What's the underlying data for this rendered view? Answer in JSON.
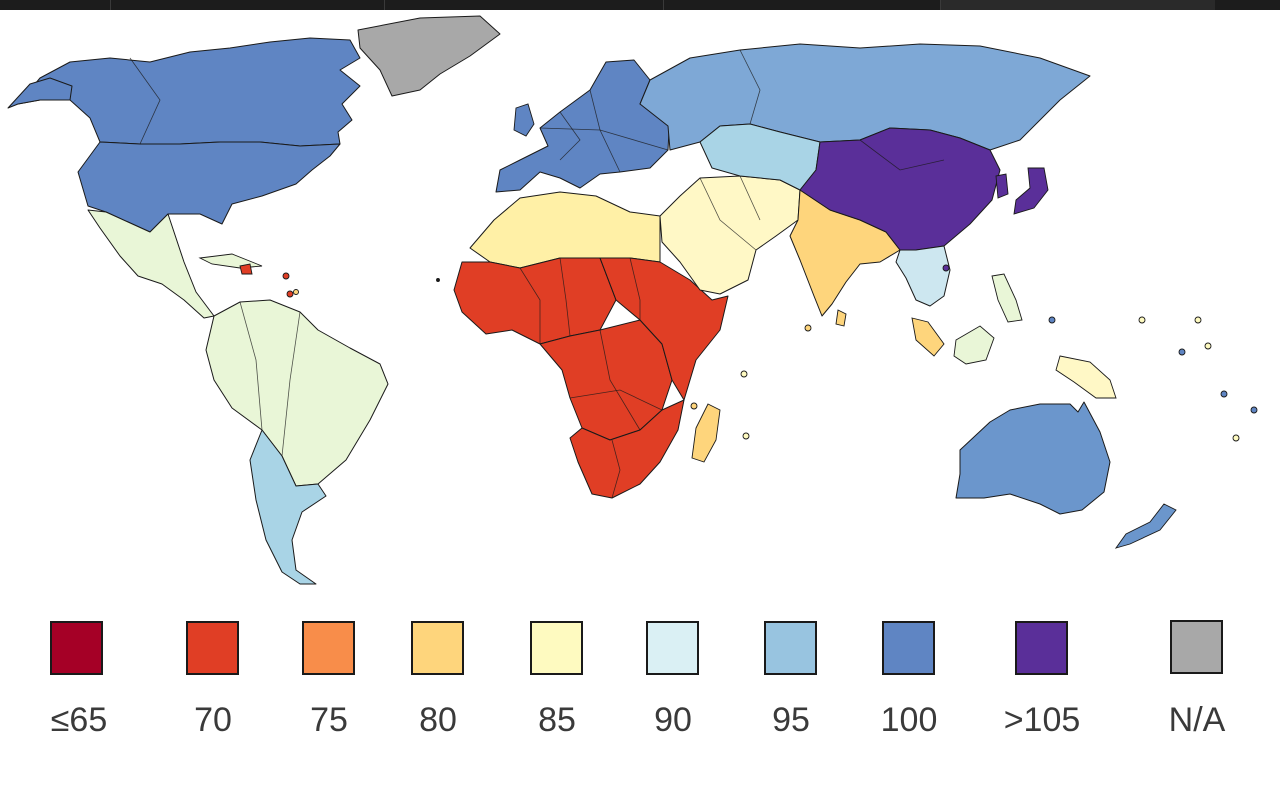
{
  "legend": {
    "items": [
      {
        "label": "≤65",
        "color": "#a50026"
      },
      {
        "label": "70",
        "color": "#e03e25"
      },
      {
        "label": "75",
        "color": "#f88d4a"
      },
      {
        "label": "80",
        "color": "#fed57c"
      },
      {
        "label": "85",
        "color": "#fefac0"
      },
      {
        "label": "90",
        "color": "#daf0f4"
      },
      {
        "label": "95",
        "color": "#98c4e0"
      },
      {
        "label": "100",
        "color": "#5f85c3"
      },
      {
        "label": ">105",
        "color": "#5a2f99"
      },
      {
        "label": "N/A",
        "color": "#a8a8a8"
      }
    ]
  },
  "regions": [
    {
      "id": "canada",
      "color": "#5f85c3"
    },
    {
      "id": "usa",
      "color": "#5f85c3"
    },
    {
      "id": "greenland",
      "color": "#a8a8a8"
    },
    {
      "id": "mexico-central-america",
      "color": "#e9f6d7"
    },
    {
      "id": "south-america",
      "color": "#e9f6d7"
    },
    {
      "id": "southern-cone",
      "color": "#a9d4e6"
    },
    {
      "id": "europe",
      "color": "#5f85c3"
    },
    {
      "id": "russia",
      "color": "#7ea8d6"
    },
    {
      "id": "north-africa",
      "color": "#fff0a6"
    },
    {
      "id": "middle-east",
      "color": "#fff8c6"
    },
    {
      "id": "central-asia",
      "color": "#a9d4e6"
    },
    {
      "id": "south-asia",
      "color": "#fed57c"
    },
    {
      "id": "china",
      "color": "#5a2f99"
    },
    {
      "id": "southeast-asia",
      "color": "#cde7f0"
    },
    {
      "id": "sub-saharan-africa",
      "color": "#e03e25"
    },
    {
      "id": "australia",
      "color": "#6b96cc"
    }
  ]
}
